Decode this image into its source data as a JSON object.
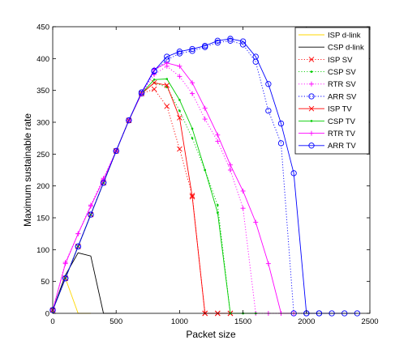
{
  "chart_data": {
    "type": "line",
    "title": "",
    "xlabel": "Packet size",
    "ylabel": "Maximum sustainable rate",
    "xlim": [
      0,
      2500
    ],
    "ylim": [
      0,
      450
    ],
    "xticks": [
      "0",
      "500",
      "1000",
      "1500",
      "2000",
      "2500"
    ],
    "yticks": [
      "0",
      "50",
      "100",
      "150",
      "200",
      "250",
      "300",
      "350",
      "400",
      "450"
    ],
    "grid": false,
    "legend_position": "top-right",
    "series": [
      {
        "name": "ISP d-link",
        "color": "#ffd700",
        "line": "solid",
        "marker": "none",
        "x": [
          0,
          100,
          200,
          300
        ],
        "y": [
          5,
          55,
          0,
          0
        ]
      },
      {
        "name": "CSP d-link",
        "color": "#000000",
        "line": "solid",
        "marker": "none",
        "x": [
          0,
          100,
          200,
          300,
          400,
          500
        ],
        "y": [
          5,
          60,
          95,
          90,
          0,
          0
        ]
      },
      {
        "name": "ISP SV",
        "color": "#ff0000",
        "line": "dotted",
        "marker": "x",
        "x": [
          0,
          100,
          200,
          300,
          400,
          500,
          600,
          700,
          800,
          900,
          1000,
          1100,
          1200,
          1300,
          1400
        ],
        "y": [
          5,
          55,
          105,
          155,
          205,
          255,
          303,
          345,
          352,
          325,
          258,
          185,
          0,
          0,
          0
        ]
      },
      {
        "name": "CSP SV",
        "color": "#00cc00",
        "line": "dotted",
        "marker": ".",
        "x": [
          0,
          100,
          200,
          300,
          400,
          500,
          600,
          700,
          800,
          900,
          1000,
          1100,
          1200,
          1300,
          1400,
          1500,
          1600
        ],
        "y": [
          5,
          55,
          105,
          155,
          205,
          255,
          303,
          345,
          362,
          355,
          318,
          275,
          225,
          170,
          0,
          0,
          0
        ]
      },
      {
        "name": "RTR SV",
        "color": "#ff00ff",
        "line": "dotted",
        "marker": "+",
        "x": [
          0,
          100,
          200,
          300,
          400,
          500,
          600,
          700,
          800,
          900,
          1000,
          1100,
          1200,
          1300,
          1400,
          1500,
          1600,
          1700,
          1800
        ],
        "y": [
          5,
          80,
          125,
          170,
          212,
          255,
          303,
          345,
          375,
          388,
          372,
          345,
          305,
          270,
          225,
          165,
          0,
          0,
          0
        ]
      },
      {
        "name": "ARR SV",
        "color": "#0000ff",
        "line": "dotted",
        "marker": "o",
        "x": [
          0,
          100,
          200,
          300,
          400,
          500,
          600,
          700,
          800,
          900,
          1000,
          1100,
          1200,
          1300,
          1400,
          1500,
          1600,
          1700,
          1800,
          1900,
          2000,
          2100
        ],
        "y": [
          5,
          55,
          105,
          155,
          205,
          255,
          303,
          345,
          380,
          398,
          408,
          412,
          418,
          425,
          428,
          422,
          395,
          318,
          267,
          0,
          0,
          0
        ]
      },
      {
        "name": "ISP TV",
        "color": "#ff0000",
        "line": "solid",
        "marker": "x",
        "x": [
          0,
          100,
          200,
          300,
          400,
          500,
          600,
          700,
          800,
          900,
          1000,
          1100,
          1200,
          1300,
          1400
        ],
        "y": [
          5,
          55,
          105,
          155,
          205,
          255,
          303,
          345,
          362,
          358,
          307,
          183,
          0,
          0,
          0
        ]
      },
      {
        "name": "CSP TV",
        "color": "#00cc00",
        "line": "solid",
        "marker": ".",
        "x": [
          0,
          100,
          200,
          300,
          400,
          500,
          600,
          700,
          800,
          900,
          1000,
          1100,
          1200,
          1300,
          1400,
          1500,
          1600
        ],
        "y": [
          5,
          55,
          105,
          155,
          205,
          255,
          303,
          345,
          367,
          368,
          335,
          290,
          225,
          158,
          0,
          0,
          0
        ]
      },
      {
        "name": "RTR TV",
        "color": "#ff00ff",
        "line": "solid",
        "marker": "+",
        "x": [
          0,
          100,
          200,
          300,
          400,
          500,
          600,
          700,
          800,
          900,
          1000,
          1100,
          1200,
          1300,
          1400,
          1500,
          1600,
          1700,
          1800,
          1900
        ],
        "y": [
          5,
          78,
          125,
          168,
          210,
          255,
          303,
          345,
          383,
          393,
          388,
          362,
          322,
          280,
          233,
          192,
          143,
          78,
          0,
          0
        ]
      },
      {
        "name": "ARR TV",
        "color": "#0000ff",
        "line": "solid",
        "marker": "o",
        "x": [
          0,
          100,
          200,
          300,
          400,
          500,
          600,
          700,
          800,
          900,
          1000,
          1100,
          1200,
          1300,
          1400,
          1500,
          1600,
          1700,
          1800,
          1900,
          2000,
          2100,
          2200,
          2300,
          2400
        ],
        "y": [
          5,
          55,
          105,
          155,
          205,
          255,
          303,
          347,
          381,
          403,
          411,
          415,
          420,
          428,
          431,
          427,
          403,
          360,
          298,
          220,
          0,
          0,
          0,
          0,
          0
        ]
      }
    ]
  }
}
